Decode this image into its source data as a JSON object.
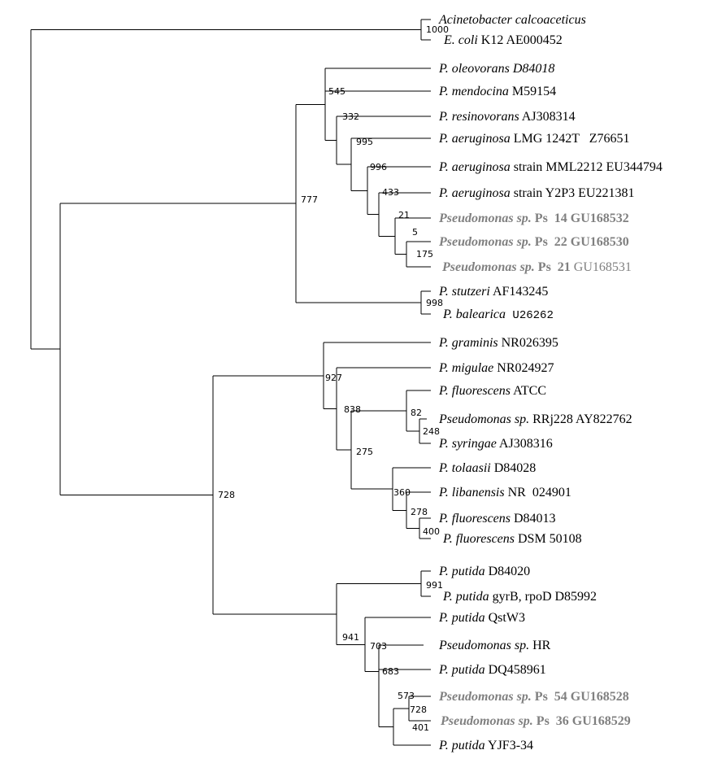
{
  "colors": {
    "line": "#000000",
    "text": "#000000",
    "highlight": "#808080"
  },
  "taxa": [
    {
      "id": "acineto",
      "parts": [
        {
          "t": "Acinetobacter calcoaceticus",
          "i": true
        }
      ]
    },
    {
      "id": "ecoli",
      "parts": [
        {
          "t": "E. coli",
          "i": true
        },
        {
          "t": " K12 AE000452"
        }
      ]
    },
    {
      "id": "oleovorans",
      "parts": [
        {
          "t": "P. oleovorans D84018",
          "i": true
        }
      ]
    },
    {
      "id": "mendocina",
      "parts": [
        {
          "t": "P. mendocina",
          "i": true
        },
        {
          "t": " M59154"
        }
      ]
    },
    {
      "id": "resinovorans",
      "parts": [
        {
          "t": "P. resinovorans",
          "i": true
        },
        {
          "t": " AJ308314"
        }
      ]
    },
    {
      "id": "aer_lmg",
      "parts": [
        {
          "t": "P. aeruginosa",
          "i": true
        },
        {
          "t": " LMG 1242T   Z76651"
        }
      ]
    },
    {
      "id": "aer_mml",
      "parts": [
        {
          "t": "P. aeruginosa",
          "i": true
        },
        {
          "t": " strain MML2212 EU344794"
        }
      ]
    },
    {
      "id": "aer_y2p3",
      "parts": [
        {
          "t": "P. aeruginosa",
          "i": true
        },
        {
          "t": " strain Y2P3 EU221381"
        }
      ]
    },
    {
      "id": "ps14",
      "hl": true,
      "parts": [
        {
          "t": "Pseudomonas sp.",
          "i": true,
          "b": true
        },
        {
          "t": " Ps  14 GU168532",
          "b": true
        }
      ]
    },
    {
      "id": "ps22",
      "hl": true,
      "parts": [
        {
          "t": "Pseudomonas sp.",
          "i": true,
          "b": true
        },
        {
          "t": " Ps  22 GU168530",
          "b": true
        }
      ]
    },
    {
      "id": "ps21",
      "hl": true,
      "parts": [
        {
          "t": "Pseudomonas sp.",
          "i": true,
          "b": true
        },
        {
          "t": " Ps  21",
          "b": true
        },
        {
          "t": " GU168531"
        }
      ]
    },
    {
      "id": "stutzeri",
      "parts": [
        {
          "t": "P. stutzeri",
          "i": true
        },
        {
          "t": " AF143245"
        }
      ]
    },
    {
      "id": "balearica",
      "parts": [
        {
          "t": "P. balearica",
          "i": true
        },
        {
          "t": " U26262",
          "m": true
        }
      ]
    },
    {
      "id": "graminis",
      "parts": [
        {
          "t": "P. graminis",
          "i": true
        },
        {
          "t": " NR026395"
        }
      ]
    },
    {
      "id": "migulae",
      "parts": [
        {
          "t": "P. migulae",
          "i": true
        },
        {
          "t": " NR024927"
        }
      ]
    },
    {
      "id": "fluor_atcc",
      "parts": [
        {
          "t": "P. fluorescens",
          "i": true
        },
        {
          "t": " ATCC"
        }
      ]
    },
    {
      "id": "rrj228",
      "parts": [
        {
          "t": "Pseudomonas sp.",
          "i": true
        },
        {
          "t": " RRj228 AY822762"
        }
      ]
    },
    {
      "id": "syringae",
      "parts": [
        {
          "t": "P. syringae",
          "i": true
        },
        {
          "t": " AJ308316"
        }
      ]
    },
    {
      "id": "tolaasii",
      "parts": [
        {
          "t": "P. tolaasii",
          "i": true
        },
        {
          "t": " D84028"
        }
      ]
    },
    {
      "id": "libanensis",
      "parts": [
        {
          "t": "P. libanensis",
          "i": true
        },
        {
          "t": " NR  024901"
        }
      ]
    },
    {
      "id": "fluor_d84013",
      "parts": [
        {
          "t": "P. fluorescens",
          "i": true
        },
        {
          "t": " D84013"
        }
      ]
    },
    {
      "id": "fluor_dsm",
      "parts": [
        {
          "t": "P. fluorescens",
          "i": true
        },
        {
          "t": " DSM 50108"
        }
      ]
    },
    {
      "id": "putida_d84020",
      "parts": [
        {
          "t": "P. putida",
          "i": true
        },
        {
          "t": " D84020"
        }
      ]
    },
    {
      "id": "putida_gyrb",
      "parts": [
        {
          "t": "P. putida",
          "i": true
        },
        {
          "t": " gyrB, rpoD D85992"
        }
      ]
    },
    {
      "id": "putida_qstw3",
      "parts": [
        {
          "t": "P. putida",
          "i": true
        },
        {
          "t": " QstW3"
        }
      ]
    },
    {
      "id": "ps_hr",
      "parts": [
        {
          "t": "Pseudomonas sp.",
          "i": true
        },
        {
          "t": " HR"
        }
      ]
    },
    {
      "id": "putida_dq",
      "parts": [
        {
          "t": "P. putida",
          "i": true
        },
        {
          "t": " DQ458961"
        }
      ]
    },
    {
      "id": "ps54",
      "hl": true,
      "parts": [
        {
          "t": "Pseudomonas sp.",
          "i": true,
          "b": true
        },
        {
          "t": " Ps  54 GU168528",
          "b": true
        }
      ]
    },
    {
      "id": "ps36",
      "hl": true,
      "parts": [
        {
          "t": "Pseudomonas sp.",
          "i": true,
          "b": true
        },
        {
          "t": " Ps  36 GU168529",
          "b": true
        }
      ]
    },
    {
      "id": "putida_yjf3",
      "parts": [
        {
          "t": "P. putida",
          "i": true
        },
        {
          "t": " YJF3-34"
        }
      ]
    }
  ],
  "bootstrap": [
    {
      "id": "n_outgroup",
      "value": "1000"
    },
    {
      "id": "n_545",
      "value": "545"
    },
    {
      "id": "n_332",
      "value": "332"
    },
    {
      "id": "n_995",
      "value": "995"
    },
    {
      "id": "n_996",
      "value": "996"
    },
    {
      "id": "n_433",
      "value": "433"
    },
    {
      "id": "n_21",
      "value": "21"
    },
    {
      "id": "n_5",
      "value": "5"
    },
    {
      "id": "n_175",
      "value": "175"
    },
    {
      "id": "n_777",
      "value": "777"
    },
    {
      "id": "n_998",
      "value": "998"
    },
    {
      "id": "n_927",
      "value": "927"
    },
    {
      "id": "n_838",
      "value": "838"
    },
    {
      "id": "n_82",
      "value": "82"
    },
    {
      "id": "n_248",
      "value": "248"
    },
    {
      "id": "n_275",
      "value": "275"
    },
    {
      "id": "n_360",
      "value": "360"
    },
    {
      "id": "n_278",
      "value": "278"
    },
    {
      "id": "n_400",
      "value": "400"
    },
    {
      "id": "n_728a",
      "value": "728"
    },
    {
      "id": "n_991",
      "value": "991"
    },
    {
      "id": "n_941",
      "value": "941"
    },
    {
      "id": "n_703",
      "value": "703"
    },
    {
      "id": "n_683",
      "value": "683"
    },
    {
      "id": "n_573",
      "value": "573"
    },
    {
      "id": "n_728b",
      "value": "728"
    },
    {
      "id": "n_401",
      "value": "401"
    }
  ]
}
